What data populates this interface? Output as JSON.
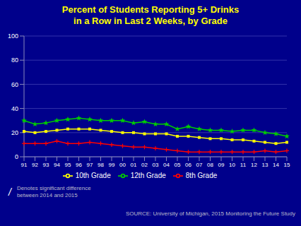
{
  "chart_data": {
    "type": "line",
    "title": "Percent of Students Reporting 5+ Drinks\nin a Row in Last 2 Weeks, by Grade",
    "categories": [
      "91",
      "92",
      "93",
      "94",
      "95",
      "96",
      "97",
      "98",
      "99",
      "00",
      "01",
      "02",
      "03",
      "04",
      "05",
      "06",
      "07",
      "08",
      "09",
      "10",
      "11",
      "12",
      "13",
      "14",
      "15"
    ],
    "series": [
      {
        "name": "8th Grade",
        "color": "#FF0000",
        "marker": "plus",
        "values": [
          11,
          11,
          11,
          13,
          11,
          11,
          12,
          11,
          10,
          9,
          8,
          8,
          7,
          6,
          5,
          4,
          4,
          4,
          4,
          4,
          4,
          4,
          5,
          4,
          5
        ]
      },
      {
        "name": "10th Grade",
        "color": "#FFFF00",
        "marker": "square",
        "values": [
          21,
          20,
          21,
          22,
          23,
          23,
          23,
          22,
          21,
          20,
          20,
          19,
          19,
          19,
          17,
          17,
          16,
          15,
          15,
          14,
          14,
          13,
          12,
          11,
          12
        ]
      },
      {
        "name": "12th Grade",
        "color": "#00CC00",
        "marker": "star",
        "values": [
          30,
          27,
          28,
          30,
          31,
          32,
          31,
          30,
          30,
          30,
          28,
          29,
          27,
          27,
          23,
          25,
          23,
          22,
          22,
          21,
          22,
          22,
          20,
          19,
          17
        ]
      }
    ],
    "ylim": [
      0,
      100
    ],
    "yticks": [
      0,
      20,
      40,
      60,
      80,
      100
    ],
    "grid": true,
    "legend": "bottom",
    "annotations": [
      "/",
      "Denotes significant difference\nbetween 2014 and 2015",
      "SOURCE: University of Michigan, 2015 Monitoring the Future Study"
    ]
  }
}
